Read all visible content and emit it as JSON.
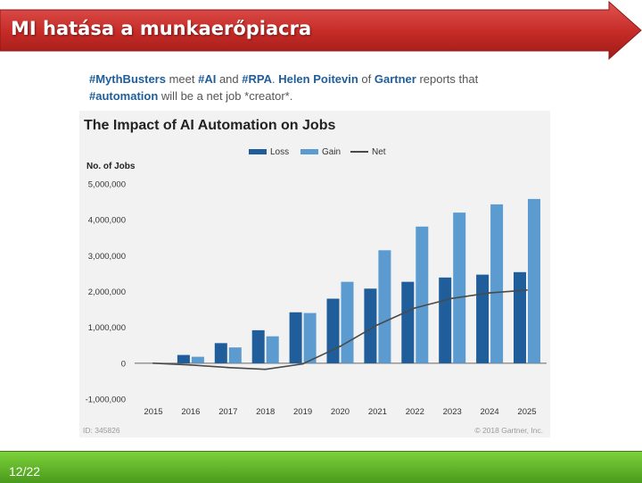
{
  "slide": {
    "title": "MI hatása a munkaerőpiacra",
    "page_number": "12/22"
  },
  "tweet": {
    "line1": [
      {
        "text": "#MythBusters",
        "bold": true
      },
      {
        "text": " meet ",
        "bold": false
      },
      {
        "text": "#AI",
        "bold": true
      },
      {
        "text": " and ",
        "bold": false
      },
      {
        "text": "#RPA",
        "bold": true
      },
      {
        "text": ".  ",
        "bold": false
      },
      {
        "text": "Helen Poitevin",
        "bold": true
      },
      {
        "text": " of ",
        "bold": false
      },
      {
        "text": "Gartner",
        "bold": true
      },
      {
        "text": " reports that",
        "bold": false
      }
    ],
    "line2": [
      {
        "text": "#automation",
        "bold": true
      },
      {
        "text": " will be a net job *creator*.",
        "bold": false
      }
    ]
  },
  "colors": {
    "banner_red": "#c9302c",
    "footer_green": "#6cc12f",
    "loss": "#1f5e9a",
    "gain": "#5b9bd0",
    "net": "#4a4a4a",
    "link_blue": "#1f5e9a"
  },
  "chart_data": {
    "type": "bar",
    "title": "The Impact of AI Automation on Jobs",
    "ylabel": "No. of Jobs",
    "categories": [
      "2015",
      "2016",
      "2017",
      "2018",
      "2019",
      "2020",
      "2021",
      "2022",
      "2023",
      "2024",
      "2025"
    ],
    "series": [
      {
        "name": "Loss",
        "type": "bar",
        "values": [
          0,
          230000,
          560000,
          920000,
          1420000,
          1800000,
          2080000,
          2270000,
          2390000,
          2470000,
          2540000
        ]
      },
      {
        "name": "Gain",
        "type": "bar",
        "values": [
          0,
          180000,
          440000,
          750000,
          1400000,
          2270000,
          3150000,
          3810000,
          4200000,
          4430000,
          4580000
        ]
      },
      {
        "name": "Net",
        "type": "line",
        "values": [
          0,
          -50000,
          -120000,
          -170000,
          -20000,
          470000,
          1070000,
          1540000,
          1810000,
          1960000,
          2040000
        ]
      }
    ],
    "ylim": [
      -1000000,
      5000000
    ],
    "yticks": [
      5000000,
      4000000,
      3000000,
      2000000,
      1000000,
      0,
      -1000000
    ],
    "ytick_labels": [
      "5,000,000",
      "4,000,000",
      "3,000,000",
      "2,000,000",
      "1,000,000",
      "0",
      "-1,000,000"
    ],
    "legend_position": "top",
    "grid": false,
    "footnote_left": "ID: 345826",
    "footnote_right": "© 2018 Gartner, Inc."
  }
}
